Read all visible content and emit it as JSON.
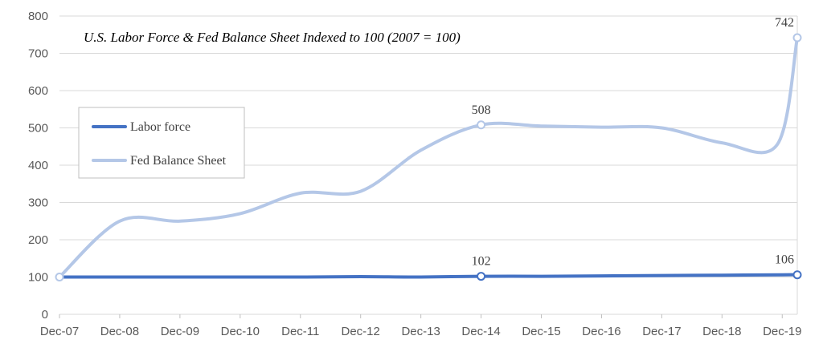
{
  "chart_data": {
    "type": "line",
    "title": "U.S. Labor Force & Fed Balance Sheet Indexed to 100 (2007 = 100)",
    "xlabel": "",
    "ylabel": "",
    "x_ticks": [
      "Dec-07",
      "Dec-08",
      "Dec-09",
      "Dec-10",
      "Dec-11",
      "Dec-12",
      "Dec-13",
      "Dec-14",
      "Dec-15",
      "Dec-16",
      "Dec-17",
      "Dec-18",
      "Dec-19"
    ],
    "y_ticks": [
      "0",
      "100",
      "200",
      "300",
      "400",
      "500",
      "600",
      "700",
      "800"
    ],
    "ylim": [
      0,
      800
    ],
    "x_range": [
      "Dec-07",
      "Mar-20"
    ],
    "grid": "horizontal",
    "legend": "left-center",
    "smooth": true,
    "series": [
      {
        "name": "Labor force",
        "color": "#4472C4",
        "x": [
          "Dec-07",
          "Dec-08",
          "Dec-09",
          "Dec-10",
          "Dec-11",
          "Dec-12",
          "Dec-13",
          "Dec-14",
          "Dec-15",
          "Dec-16",
          "Dec-17",
          "Dec-18",
          "Dec-19",
          "Mar-20"
        ],
        "values": [
          100,
          100,
          100,
          100,
          100,
          101,
          100,
          102,
          102,
          103,
          104,
          105,
          106,
          106
        ],
        "markers": [
          {
            "x": "Dec-14",
            "value": 102,
            "label": "102"
          },
          {
            "x": "Mar-20",
            "value": 106,
            "label": "106"
          }
        ]
      },
      {
        "name": "Fed Balance Sheet",
        "color": "#B4C7E7",
        "x": [
          "Dec-07",
          "Dec-08",
          "Dec-09",
          "Dec-10",
          "Dec-11",
          "Dec-12",
          "Dec-13",
          "Dec-14",
          "Dec-15",
          "Dec-16",
          "Dec-17",
          "Dec-18",
          "Nov-19",
          "Mar-20"
        ],
        "values": [
          100,
          250,
          250,
          270,
          325,
          330,
          440,
          508,
          505,
          502,
          500,
          460,
          455,
          742
        ],
        "markers": [
          {
            "x": "Dec-07",
            "value": 100,
            "label": ""
          },
          {
            "x": "Dec-14",
            "value": 508,
            "label": "508"
          },
          {
            "x": "Mar-20",
            "value": 742,
            "label": "742"
          }
        ]
      }
    ]
  }
}
